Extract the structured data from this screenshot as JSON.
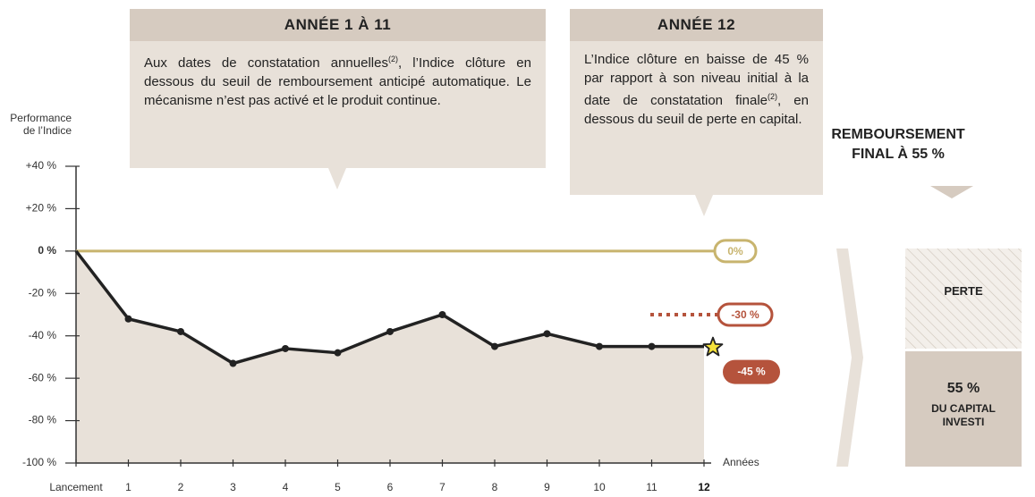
{
  "chart_data": {
    "type": "line",
    "y_axis_label": "Performance\nde l’Indice",
    "x_axis_label": "Années",
    "categories": [
      "Lancement",
      "1",
      "2",
      "3",
      "4",
      "5",
      "6",
      "7",
      "8",
      "9",
      "10",
      "11",
      "12"
    ],
    "series": [
      {
        "color": "#222222",
        "area_color": "#e8e1d9",
        "values": [
          0,
          -32,
          -38,
          -53,
          -46,
          -48,
          -38,
          -30,
          -45,
          -39,
          -45,
          -45,
          -45
        ],
        "value_labels": [
          null,
          null,
          null,
          null,
          null,
          null,
          null,
          null,
          null,
          null,
          null,
          null,
          "-45 %"
        ]
      }
    ],
    "ylim": [
      -100,
      40
    ],
    "yticks": [
      {
        "value": 40,
        "label": "+40 %"
      },
      {
        "value": 20,
        "label": "+20 %"
      },
      {
        "value": 0,
        "label": "0 %"
      },
      {
        "value": -20,
        "label": "-20 %"
      },
      {
        "value": -40,
        "label": "-40 %"
      },
      {
        "value": -60,
        "label": "-60 %"
      },
      {
        "value": -80,
        "label": "-80 %"
      },
      {
        "value": -100,
        "label": "-100 %"
      }
    ],
    "thresholds": [
      {
        "value": 0,
        "label": "0%",
        "color": "#c8b46e"
      },
      {
        "value": -30,
        "label": "-30 %",
        "color": "#b5533c"
      }
    ],
    "callouts": [
      {
        "title": "ANNÉE 1 À 11",
        "text": [
          "Aux dates de constatation annuelles",
          "(2)",
          ", l’Indice clôture en dessous du seuil de remboursement anticipé automatique. Le mécanisme n’est pas activé et le produit continue."
        ]
      },
      {
        "title": "ANNÉE 12",
        "text": [
          "L’Indice clôture en baisse de 45 % par rapport à son niveau initial à la date de constatation finale",
          "(2)",
          ", en dessous du seuil de perte en capital."
        ]
      }
    ],
    "final": {
      "title": "REMBOURSEMENT\nFINAL À 55 %",
      "loss_label": "PERTE",
      "capital_value": "55 %",
      "capital_label": "DU CAPITAL\nINVESTI"
    }
  }
}
